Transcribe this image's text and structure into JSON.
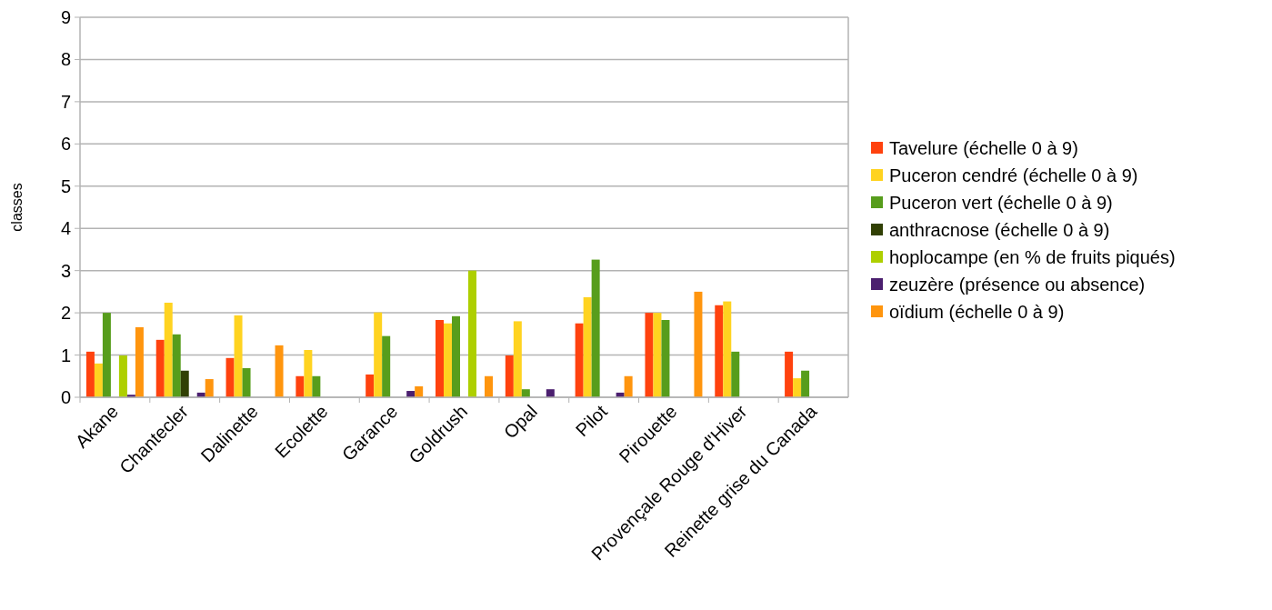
{
  "chart_data": {
    "type": "bar",
    "ylabel": "classes",
    "categories": [
      "Akane",
      "Chantecler",
      "Dalinette",
      "Ecolette",
      "Garance",
      "Goldrush",
      "Opal",
      "Pilot",
      "Pirouette",
      "Provençale Rouge d'Hiver",
      "Reinette grise du Canada"
    ],
    "series": [
      {
        "name": "Tavelure (échelle 0 à 9)",
        "color": "#ff420e",
        "values": [
          1.08,
          1.36,
          0.93,
          0.5,
          0.54,
          1.83,
          0.99,
          1.75,
          2.0,
          2.18,
          1.08
        ]
      },
      {
        "name": "Puceron cendré (échelle 0 à 9)",
        "color": "#ffd320",
        "values": [
          0.8,
          2.24,
          1.94,
          1.12,
          2.01,
          1.75,
          1.8,
          2.37,
          2.0,
          2.27,
          0.45
        ]
      },
      {
        "name": "Puceron vert (échelle 0 à 9)",
        "color": "#579d1c",
        "values": [
          2.0,
          1.49,
          0.69,
          0.5,
          1.45,
          1.92,
          0.19,
          3.26,
          1.83,
          1.08,
          0.63
        ]
      },
      {
        "name": "anthracnose (échelle 0 à 9)",
        "color": "#314004",
        "values": [
          0,
          0.63,
          0,
          0,
          0,
          0,
          0,
          0,
          0,
          0,
          0
        ]
      },
      {
        "name": "hoplocampe (en % de fruits piqués)",
        "color": "#aecf00",
        "values": [
          0.99,
          0,
          0,
          0,
          0,
          3.0,
          0,
          0,
          0,
          0,
          0
        ]
      },
      {
        "name": "zeuzère (présence ou absence)",
        "color": "#4b1f6f",
        "values": [
          0.06,
          0.11,
          0,
          0,
          0.15,
          0,
          0.19,
          0.11,
          0,
          0,
          0
        ]
      },
      {
        "name": "oïdium (échelle 0 à 9)",
        "color": "#ff950e",
        "values": [
          1.66,
          0.43,
          1.23,
          0,
          0.26,
          0.5,
          0,
          0.5,
          2.5,
          0,
          0
        ]
      }
    ],
    "ylim": [
      0,
      9
    ],
    "yticks": [
      0,
      1,
      2,
      3,
      4,
      5,
      6,
      7,
      8,
      9
    ],
    "grid": "y",
    "legend": "right"
  }
}
